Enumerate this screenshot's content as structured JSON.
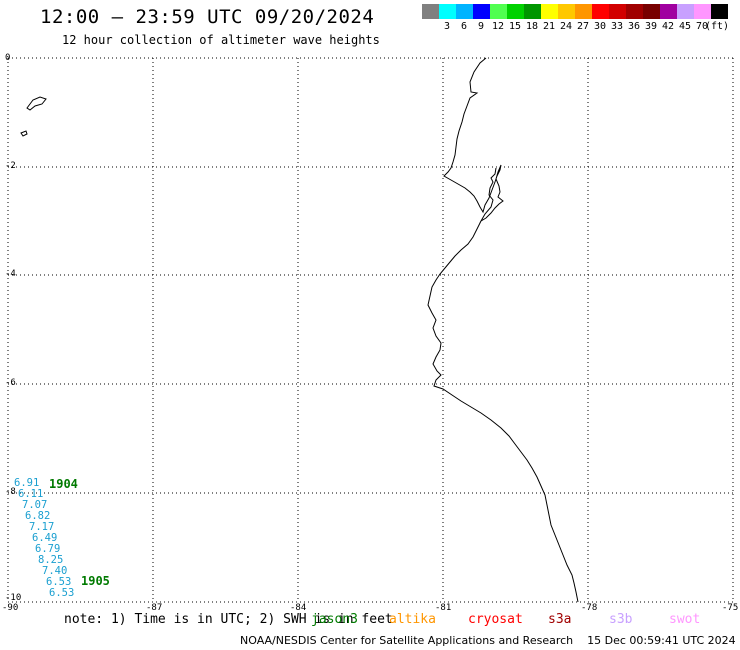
{
  "header": {
    "title": "12:00 – 23:59 UTC 09/20/2024",
    "subtitle": "12 hour collection of altimeter wave heights"
  },
  "legend": {
    "unit": "(ft)",
    "bins": [
      {
        "label": "",
        "color": "#808080"
      },
      {
        "label": "3",
        "color": "#00ffff"
      },
      {
        "label": "6",
        "color": "#00b4ff"
      },
      {
        "label": "9",
        "color": "#0000ff"
      },
      {
        "label": "12",
        "color": "#50ff50"
      },
      {
        "label": "15",
        "color": "#00d200"
      },
      {
        "label": "18",
        "color": "#009600"
      },
      {
        "label": "21",
        "color": "#ffff00"
      },
      {
        "label": "24",
        "color": "#ffc800"
      },
      {
        "label": "27",
        "color": "#ff9600"
      },
      {
        "label": "30",
        "color": "#ff0000"
      },
      {
        "label": "33",
        "color": "#d20000"
      },
      {
        "label": "36",
        "color": "#a00000"
      },
      {
        "label": "39",
        "color": "#780000"
      },
      {
        "label": "42",
        "color": "#a000a0"
      },
      {
        "label": "45",
        "color": "#c8a0ff"
      },
      {
        "label": "70",
        "color": "#ff96ff"
      },
      {
        "label": "",
        "color": "#000000"
      }
    ]
  },
  "map": {
    "lat_ticks": [
      "0",
      "-2",
      "-4",
      "-6",
      "-8",
      "-10"
    ],
    "lon_ticks": [
      "-90",
      "-87",
      "-84",
      "-81",
      "-78",
      "-75"
    ],
    "track_time_labels": [
      "1904",
      "1905"
    ],
    "wave_heights_ft": [
      "6.91",
      "6.11",
      "7.07",
      "6.82",
      "7.17",
      "6.49",
      "6.79",
      "8.25",
      "7.40",
      "6.53",
      "6.53"
    ],
    "obs_color": "#1a9fd0",
    "time_color": "#007a00"
  },
  "note": "note: 1) Time is in UTC; 2) SWH is in feet",
  "satellites": [
    {
      "name": "jason3",
      "color": "#007a00"
    },
    {
      "name": "altika",
      "color": "#ff9600"
    },
    {
      "name": "cryosat",
      "color": "#ff0000"
    },
    {
      "name": "s3a",
      "color": "#a00000"
    },
    {
      "name": "s3b",
      "color": "#c8a0ff"
    },
    {
      "name": "swot",
      "color": "#ff96ff"
    }
  ],
  "footer": {
    "credit": "NOAA/NESDIS Center for Satellite Applications and Research",
    "timestamp": "15 Dec 00:59:41 UTC 2024"
  }
}
